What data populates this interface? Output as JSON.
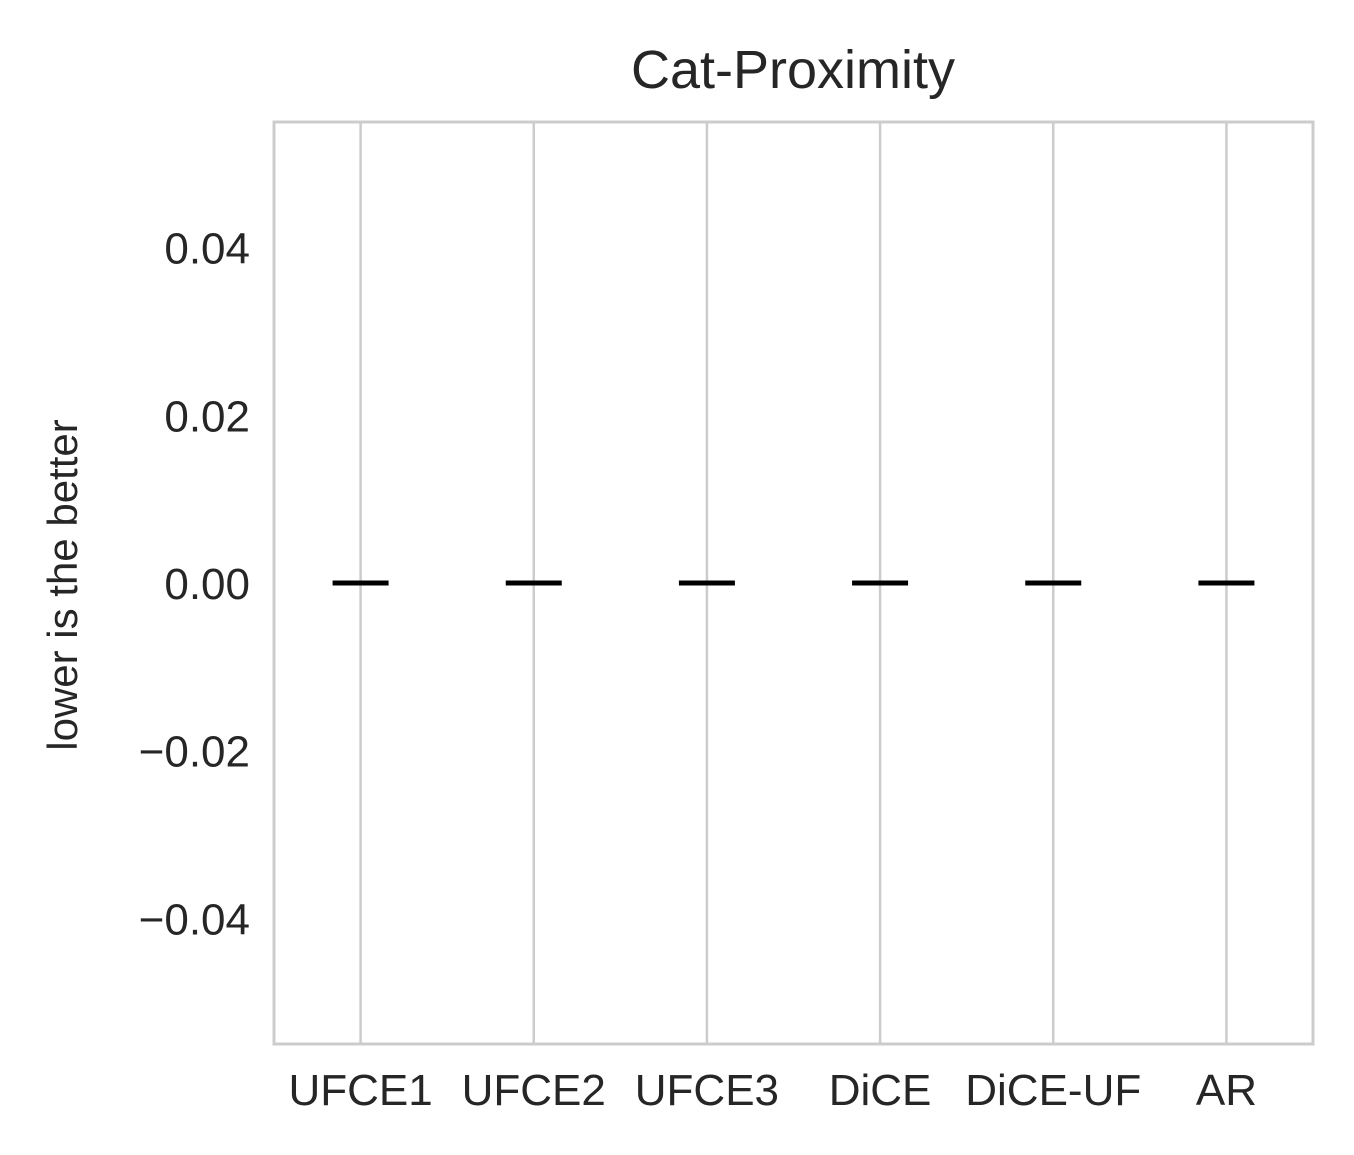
{
  "chart_data": {
    "type": "box",
    "title": "Cat-Proximity",
    "xlabel": "",
    "ylabel": "lower is the better",
    "categories": [
      "UFCE1",
      "UFCE2",
      "UFCE3",
      "DiCE",
      "DiCE-UF",
      "AR"
    ],
    "values": [
      0.0,
      0.0,
      0.0,
      0.0,
      0.0,
      0.0
    ],
    "ylim": [
      -0.055,
      0.055
    ],
    "yticks": [
      -0.04,
      -0.02,
      0.0,
      0.02,
      0.04
    ],
    "ytick_labels": [
      "−0.04",
      "−0.02",
      "0.00",
      "0.02",
      "0.04"
    ],
    "grid": "vertical",
    "colors": {
      "grid": "#cccccc",
      "frame": "#cccccc",
      "median": "#000000",
      "text": "#262626"
    }
  }
}
